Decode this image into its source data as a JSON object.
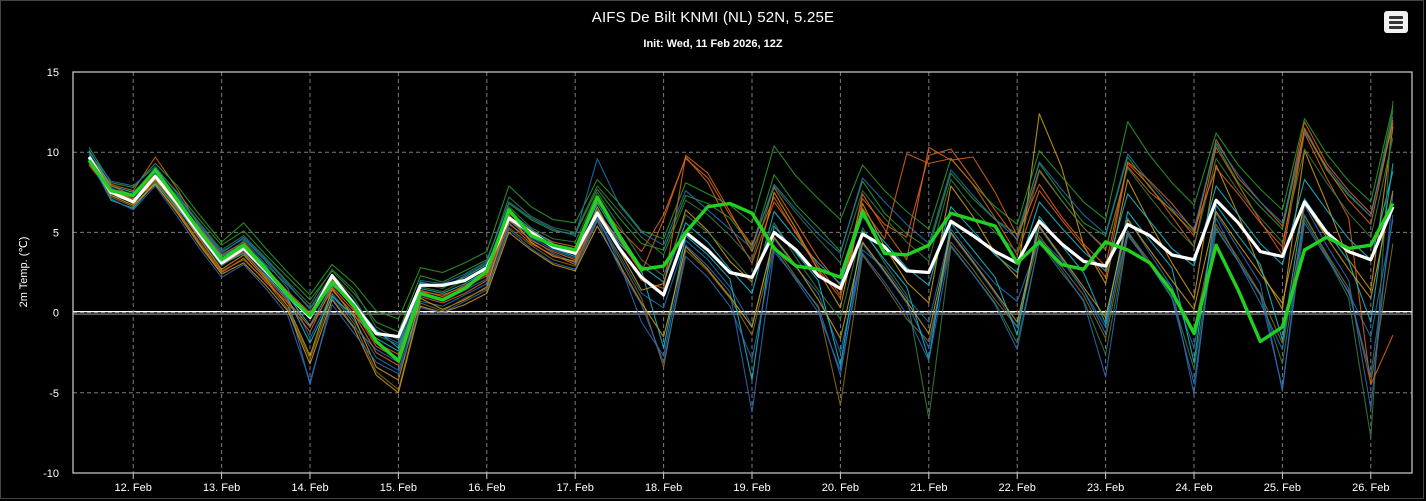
{
  "header": {
    "title": "AIFS De Bilt KNMI (NL) 52N, 5.25E",
    "subtitle": "Init: Wed, 11 Feb 2026, 12Z",
    "menu_icon": "hamburger-menu-icon"
  },
  "colors": {
    "background": "#000000",
    "grid": "#7a7a7a",
    "control": "#ffffff",
    "mean": "#22d022",
    "member_palette": [
      "#1f77b4",
      "#2ca02c",
      "#17becf",
      "#d4a017",
      "#e0661b",
      "#3a7d44",
      "#8c6d1f",
      "#2f6db5"
    ]
  },
  "chart_data": {
    "type": "line",
    "title": "AIFS De Bilt KNMI (NL) 52N, 5.25E",
    "subtitle": "Init: Wed, 11 Feb 2026, 12Z",
    "ylabel": "2m Temp. (℃)",
    "xlabel": "",
    "ylim": [
      -10,
      15
    ],
    "yticks": [
      -10,
      -5,
      0,
      5,
      10,
      15
    ],
    "xlim": [
      0,
      58
    ],
    "x_unit": "6-hourly steps from 11 Feb 2026 12Z",
    "x_tick_labels": [
      "12. Feb",
      "13. Feb",
      "14. Feb",
      "15. Feb",
      "16. Feb",
      "17. Feb",
      "18. Feb",
      "19. Feb",
      "20. Feb",
      "21. Feb",
      "22. Feb",
      "23. Feb",
      "24. Feb",
      "25. Feb",
      "26. Feb"
    ],
    "x_tick_positions": [
      2,
      6,
      10,
      14,
      18,
      22,
      26,
      30,
      34,
      38,
      42,
      46,
      50,
      54,
      58
    ],
    "grid": true,
    "legend": "none",
    "series": [
      {
        "role": "control",
        "color": "#ffffff",
        "values": [
          9.7,
          7.5,
          6.9,
          8.5,
          6.8,
          4.9,
          3.1,
          4.0,
          2.6,
          1.1,
          -0.3,
          2.3,
          0.5,
          -1.3,
          -1.5,
          1.7,
          1.7,
          2.0,
          2.8,
          5.9,
          5.0,
          4.1,
          3.7,
          6.2,
          4.0,
          2.2,
          1.1,
          5.0,
          3.9,
          2.5,
          2.2,
          5.0,
          3.9,
          2.3,
          1.5,
          4.9,
          4.1,
          2.6,
          2.5,
          5.7,
          4.8,
          3.8,
          3.1,
          5.7,
          4.3,
          3.2,
          2.9,
          5.5,
          4.8,
          3.6,
          3.3,
          7.0,
          5.6,
          3.8,
          3.5,
          6.9,
          5.0,
          3.8,
          3.3,
          6.6
        ]
      },
      {
        "role": "ensemble-mean",
        "color": "#22d022",
        "values": [
          9.5,
          7.6,
          7.3,
          8.9,
          7.0,
          5.1,
          3.3,
          4.2,
          2.7,
          1.1,
          -0.2,
          1.9,
          0.4,
          -1.8,
          -3.0,
          1.2,
          0.8,
          1.5,
          2.6,
          6.4,
          4.8,
          4.2,
          3.9,
          7.2,
          4.8,
          2.7,
          2.9,
          5.0,
          6.6,
          6.8,
          6.2,
          4.0,
          2.9,
          2.7,
          2.2,
          6.3,
          3.7,
          3.6,
          4.2,
          6.2,
          5.8,
          5.4,
          3.1,
          4.4,
          3.0,
          2.7,
          4.4,
          3.9,
          3.1,
          1.3,
          -1.3,
          4.2,
          1.4,
          -1.8,
          -0.9,
          3.9,
          4.7,
          4.0,
          4.2,
          6.8
        ]
      },
      {
        "role": "member",
        "color": "#1f77b4",
        "values": [
          9.9,
          7.8,
          7.0,
          8.7,
          7.2,
          5.5,
          3.8,
          4.6,
          3.2,
          1.5,
          -1.6,
          1.2,
          -0.5,
          -2.8,
          -3.6,
          0.7,
          0.4,
          1.1,
          1.8,
          5.5,
          4.6,
          3.7,
          3.1,
          5.9,
          3.6,
          1.2,
          0.3,
          4.5,
          3.3,
          1.6,
          -0.8,
          4.6,
          2.8,
          1.2,
          -2.5,
          3.9,
          2.8,
          0.9,
          -0.6,
          5.2,
          3.4,
          1.8,
          0.7,
          4.6,
          3.3,
          1.4,
          -0.9,
          5.1,
          3.0,
          1.6,
          -2.2,
          5.9,
          3.2,
          0.6,
          -2.3,
          6.1,
          3.6,
          1.2,
          -1.5,
          5.8
        ]
      },
      {
        "role": "member",
        "color": "#2ca02c",
        "values": [
          9.6,
          7.4,
          7.2,
          9.0,
          7.5,
          5.8,
          4.2,
          5.1,
          3.6,
          2.2,
          0.8,
          2.6,
          1.2,
          -0.6,
          -1.2,
          2.3,
          1.9,
          2.6,
          3.3,
          6.8,
          5.8,
          5.1,
          4.9,
          7.7,
          5.9,
          4.3,
          3.9,
          7.3,
          6.8,
          5.9,
          4.1,
          8.6,
          6.7,
          5.3,
          3.8,
          8.2,
          6.2,
          4.9,
          4.0,
          8.7,
          7.1,
          5.8,
          4.9,
          9.3,
          7.4,
          5.6,
          4.8,
          9.7,
          7.8,
          6.3,
          5.0,
          10.5,
          8.1,
          6.6,
          5.2,
          11.4,
          8.9,
          7.3,
          6.0,
          12.6
        ]
      },
      {
        "role": "member",
        "color": "#d4a017",
        "values": [
          9.4,
          7.6,
          6.8,
          8.3,
          6.6,
          4.6,
          2.7,
          3.6,
          2.1,
          0.4,
          -2.7,
          1.5,
          -0.3,
          -3.4,
          -4.2,
          0.9,
          0.2,
          0.8,
          1.6,
          6.1,
          4.4,
          3.5,
          3.2,
          6.6,
          3.9,
          1.4,
          1.8,
          6.4,
          5.1,
          3.2,
          1.9,
          7.5,
          5.2,
          2.6,
          0.3,
          6.8,
          4.1,
          1.9,
          0.6,
          7.9,
          6.0,
          3.7,
          2.2,
          12.4,
          9.1,
          4.2,
          1.8,
          8.3,
          5.6,
          3.1,
          0.9,
          9.2,
          6.1,
          2.7,
          0.2,
          10.1,
          6.8,
          3.3,
          1.4,
          11.6
        ]
      },
      {
        "role": "member",
        "color": "#e0661b",
        "values": [
          9.8,
          8.0,
          7.6,
          9.7,
          7.7,
          5.3,
          3.6,
          4.4,
          2.8,
          1.3,
          0.0,
          2.1,
          0.2,
          -1.9,
          -2.6,
          1.4,
          1.0,
          1.7,
          2.4,
          6.2,
          5.1,
          4.4,
          4.1,
          6.9,
          5.2,
          3.8,
          6.1,
          9.6,
          8.4,
          6.1,
          4.2,
          7.8,
          5.6,
          3.4,
          1.7,
          7.1,
          5.5,
          4.7,
          9.8,
          10.2,
          8.3,
          6.4,
          4.5,
          8.9,
          7.0,
          5.3,
          3.9,
          9.1,
          7.5,
          6.4,
          4.8,
          10.8,
          8.4,
          6.9,
          5.4,
          11.9,
          9.3,
          7.6,
          6.2,
          11.8
        ]
      },
      {
        "role": "member",
        "color": "#17becf",
        "values": [
          10.1,
          7.9,
          7.5,
          8.8,
          7.1,
          5.2,
          3.5,
          4.3,
          2.9,
          1.0,
          -0.8,
          1.7,
          0.6,
          -1.1,
          -2.2,
          1.9,
          1.6,
          2.2,
          3.0,
          5.7,
          4.9,
          4.0,
          3.5,
          6.4,
          4.3,
          2.9,
          1.9,
          5.6,
          4.4,
          2.7,
          1.2,
          6.3,
          4.6,
          3.1,
          1.8,
          6.0,
          4.4,
          2.8,
          1.7,
          6.6,
          5.1,
          3.6,
          2.5,
          6.9,
          5.3,
          3.8,
          2.6,
          7.4,
          5.7,
          4.0,
          2.9,
          7.9,
          6.1,
          4.3,
          3.0,
          8.3,
          6.4,
          4.6,
          3.3,
          8.8
        ]
      },
      {
        "role": "member",
        "color": "#3a7d44",
        "values": [
          9.3,
          7.3,
          6.9,
          8.6,
          6.9,
          5.0,
          3.2,
          4.5,
          3.0,
          1.7,
          0.3,
          2.4,
          0.9,
          -1.4,
          -2.0,
          1.6,
          1.3,
          2.0,
          2.7,
          6.6,
          5.3,
          4.6,
          4.4,
          7.5,
          5.4,
          3.3,
          2.3,
          6.1,
          5.0,
          3.6,
          2.0,
          5.6,
          3.4,
          1.4,
          -0.4,
          5.3,
          3.1,
          1.1,
          -6.6,
          4.1,
          2.4,
          0.6,
          -1.9,
          4.4,
          2.5,
          0.8,
          -2.6,
          4.8,
          3.0,
          1.0,
          -3.5,
          5.2,
          3.2,
          1.1,
          -3.2,
          5.8,
          3.5,
          0.9,
          -7.8,
          13.2
        ]
      },
      {
        "role": "member",
        "color": "#8c6d1f",
        "values": [
          9.7,
          7.2,
          6.6,
          8.2,
          6.4,
          4.4,
          2.6,
          3.3,
          2.0,
          0.2,
          -2.9,
          1.1,
          -0.7,
          -3.7,
          -4.8,
          0.6,
          0.1,
          0.9,
          1.5,
          5.3,
          4.2,
          3.3,
          2.9,
          5.8,
          3.4,
          0.9,
          -3.4,
          3.9,
          2.6,
          0.9,
          -1.4,
          4.2,
          2.2,
          0.3,
          -5.8,
          3.6,
          1.7,
          -0.4,
          -1.8,
          4.4,
          2.7,
          0.8,
          -0.9,
          4.8,
          2.9,
          1.1,
          -1.6,
          5.0,
          3.2,
          1.3,
          -1.1,
          5.5,
          3.4,
          1.2,
          -1.9,
          6.0,
          3.7,
          1.5,
          -4.4,
          4.3
        ]
      },
      {
        "role": "member",
        "color": "#2f6db5",
        "values": [
          9.5,
          7.7,
          7.4,
          8.4,
          6.7,
          4.7,
          2.9,
          3.9,
          2.4,
          0.8,
          -4.5,
          0.9,
          -0.9,
          -2.3,
          -3.1,
          1.1,
          0.7,
          1.4,
          2.1,
          6.0,
          4.7,
          3.9,
          3.4,
          6.0,
          3.1,
          -0.6,
          -2.7,
          4.2,
          2.9,
          1.3,
          -6.2,
          3.8,
          2.1,
          0.4,
          -3.9,
          4.3,
          2.5,
          0.6,
          -2.2,
          4.9,
          3.1,
          1.2,
          -0.9,
          5.3,
          3.4,
          1.4,
          -1.3,
          5.9,
          3.7,
          1.6,
          -5.1,
          6.2,
          4.0,
          1.8,
          -4.9,
          6.7,
          4.2,
          2.0,
          -6.0,
          7.4
        ]
      },
      {
        "role": "member",
        "color": "#2ca02c",
        "values": [
          10.3,
          8.1,
          7.8,
          9.3,
          7.9,
          6.1,
          4.4,
          5.6,
          4.0,
          2.5,
          1.1,
          3.0,
          1.8,
          0.1,
          -0.4,
          2.8,
          2.5,
          3.1,
          3.8,
          7.9,
          6.6,
          5.8,
          5.6,
          8.3,
          6.8,
          5.1,
          4.6,
          8.1,
          7.4,
          6.7,
          5.6,
          10.4,
          8.5,
          7.1,
          5.8,
          9.2,
          7.6,
          6.3,
          5.2,
          9.6,
          8.0,
          6.6,
          5.5,
          10.1,
          8.5,
          6.9,
          5.8,
          11.9,
          9.8,
          8.1,
          6.7,
          11.2,
          9.2,
          7.7,
          6.4,
          12.1,
          9.9,
          8.2,
          6.9,
          12.9
        ]
      },
      {
        "role": "member",
        "color": "#e0661b",
        "values": [
          9.2,
          7.5,
          7.1,
          8.0,
          6.3,
          4.3,
          2.5,
          3.4,
          1.9,
          0.6,
          -1.2,
          1.6,
          0.1,
          -2.1,
          -2.9,
          1.3,
          1.1,
          1.6,
          2.3,
          5.8,
          4.5,
          3.8,
          3.3,
          6.3,
          4.5,
          2.5,
          5.8,
          9.7,
          8.1,
          5.4,
          3.1,
          6.9,
          5.0,
          2.9,
          1.1,
          6.5,
          4.6,
          9.9,
          9.3,
          9.6,
          8.0,
          5.9,
          3.6,
          7.6,
          5.8,
          4.1,
          2.2,
          9.3,
          7.9,
          6.0,
          4.1,
          10.3,
          8.0,
          5.7,
          3.6,
          11.2,
          8.4,
          5.9,
          -4.5,
          -1.4
        ]
      },
      {
        "role": "member",
        "color": "#17becf",
        "values": [
          9.6,
          7.0,
          6.5,
          8.1,
          6.5,
          4.8,
          3.0,
          3.7,
          2.3,
          0.9,
          -1.9,
          1.0,
          -0.2,
          -1.6,
          -2.4,
          1.5,
          1.2,
          1.8,
          2.6,
          6.3,
          5.2,
          4.3,
          3.8,
          6.8,
          4.6,
          2.6,
          -2.2,
          4.8,
          3.6,
          2.1,
          -4.2,
          5.4,
          3.7,
          2.0,
          -3.3,
          5.1,
          3.3,
          1.6,
          -2.9,
          5.6,
          3.9,
          2.2,
          -1.4,
          6.0,
          4.2,
          2.5,
          -0.7,
          6.3,
          4.5,
          2.8,
          -3.1,
          6.7,
          4.8,
          3.0,
          -1.7,
          7.1,
          5.1,
          3.2,
          -0.6,
          9.3
        ]
      },
      {
        "role": "member",
        "color": "#3a7d44",
        "values": [
          9.8,
          7.6,
          7.2,
          8.5,
          7.3,
          5.6,
          3.9,
          4.8,
          3.4,
          1.9,
          0.5,
          2.7,
          1.4,
          -0.9,
          -1.7,
          1.8,
          1.5,
          2.3,
          3.1,
          7.2,
          6.0,
          5.3,
          5.0,
          7.9,
          6.3,
          4.7,
          3.6,
          7.0,
          6.1,
          4.8,
          3.3,
          7.9,
          6.2,
          4.6,
          3.1,
          7.6,
          5.9,
          4.4,
          3.2,
          8.3,
          6.5,
          5.0,
          3.8,
          8.8,
          7.0,
          5.3,
          4.0,
          9.0,
          7.2,
          5.5,
          4.1,
          9.6,
          7.6,
          5.9,
          4.4,
          10.2,
          8.1,
          6.2,
          4.7,
          10.9
        ]
      },
      {
        "role": "member",
        "color": "#d4a017",
        "values": [
          9.4,
          7.3,
          6.7,
          8.0,
          6.2,
          4.2,
          2.4,
          3.1,
          1.7,
          0.1,
          -3.2,
          0.8,
          -1.0,
          -3.9,
          -5.0,
          0.4,
          0.0,
          0.5,
          1.2,
          5.0,
          3.9,
          3.0,
          2.6,
          5.4,
          3.0,
          0.6,
          -1.5,
          4.1,
          2.7,
          1.0,
          -0.9,
          4.7,
          2.9,
          0.8,
          -1.6,
          4.4,
          2.6,
          0.7,
          -1.3,
          5.0,
          3.2,
          1.3,
          -0.6,
          5.4,
          3.5,
          1.6,
          -0.3,
          5.8,
          3.9,
          2.0,
          0.2,
          6.3,
          4.3,
          2.4,
          0.6,
          6.8,
          4.7,
          2.7,
          0.9,
          7.6
        ]
      },
      {
        "role": "member",
        "color": "#1f77b4",
        "values": [
          10.0,
          8.2,
          7.9,
          9.1,
          7.4,
          5.4,
          3.7,
          4.7,
          3.3,
          1.8,
          0.2,
          2.2,
          0.7,
          -1.2,
          -1.9,
          2.0,
          1.8,
          2.4,
          3.2,
          6.9,
          5.9,
          5.2,
          4.8,
          9.6,
          6.7,
          5.0,
          4.2,
          7.6,
          6.4,
          5.2,
          4.0,
          8.0,
          6.4,
          4.9,
          3.7,
          8.4,
          6.9,
          5.5,
          4.3,
          8.9,
          7.3,
          5.8,
          4.6,
          9.4,
          7.7,
          6.1,
          4.9,
          9.9,
          8.1,
          6.5,
          5.2,
          10.6,
          8.6,
          6.9,
          5.6,
          11.3,
          9.1,
          7.4,
          6.0,
          12.2
        ]
      },
      {
        "role": "member",
        "color": "#e0661b",
        "values": [
          9.6,
          7.9,
          7.3,
          8.6,
          6.8,
          4.8,
          3.0,
          3.8,
          2.2,
          0.7,
          -0.9,
          1.4,
          -0.1,
          -2.5,
          -3.3,
          1.0,
          0.6,
          1.2,
          2.0,
          5.6,
          4.3,
          3.6,
          3.0,
          6.2,
          4.1,
          2.0,
          1.5,
          9.8,
          8.7,
          6.3,
          3.8,
          7.2,
          4.9,
          2.7,
          0.9,
          7.4,
          5.2,
          3.3,
          10.3,
          9.5,
          9.7,
          7.5,
          4.8,
          8.0,
          6.0,
          4.3,
          2.9,
          9.4,
          8.2,
          6.8,
          5.1,
          9.0,
          7.4,
          5.6,
          4.1,
          11.5,
          9.0,
          7.0,
          5.5,
          12.0
        ]
      },
      {
        "role": "member",
        "color": "#2f6db5",
        "values": [
          9.5,
          7.1,
          6.4,
          7.9,
          6.0,
          4.0,
          2.2,
          3.0,
          1.5,
          -0.2,
          -4.3,
          0.5,
          -1.3,
          -3.1,
          -3.8,
          0.3,
          0.0,
          0.7,
          1.4,
          5.2,
          4.0,
          3.1,
          2.7,
          5.7,
          2.8,
          0.5,
          -3.1,
          3.5,
          2.2,
          0.4,
          -2.9,
          4.0,
          2.0,
          0.0,
          -3.6,
          3.7,
          1.9,
          -0.1,
          -3.0,
          4.2,
          2.4,
          0.5,
          -2.3,
          4.5,
          2.7,
          0.7,
          -4.0,
          4.9,
          3.0,
          0.9,
          -4.4,
          5.3,
          3.2,
          1.1,
          -4.7,
          5.6,
          3.4,
          1.3,
          -3.9,
          6.1
        ]
      }
    ]
  }
}
